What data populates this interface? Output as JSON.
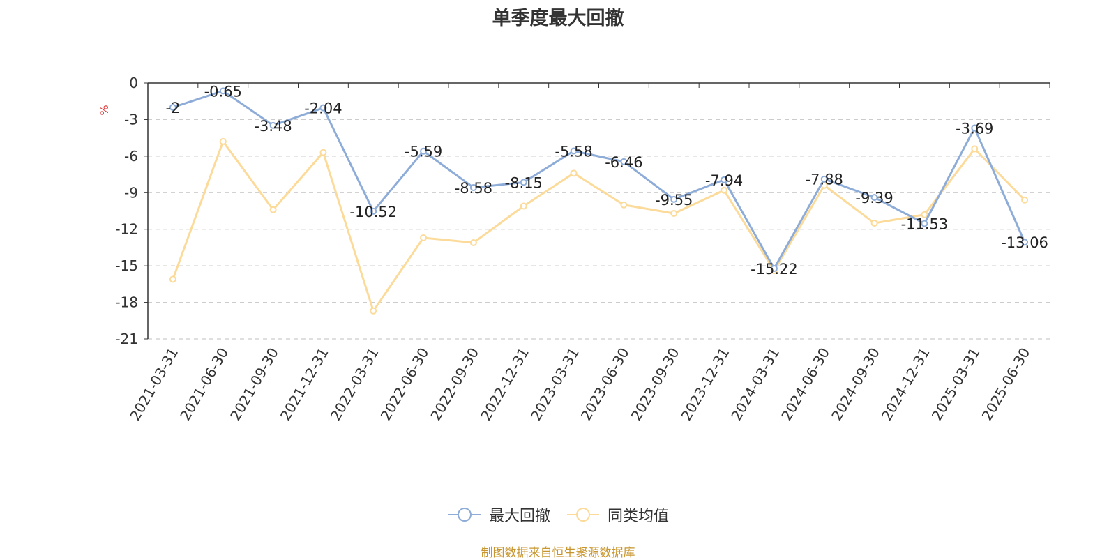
{
  "chart_data": {
    "type": "line",
    "title": "单季度最大回撤",
    "ylabel": "%",
    "ylim": [
      -21,
      0
    ],
    "yticks": [
      0,
      -3,
      -6,
      -9,
      -12,
      -15,
      -18,
      -21
    ],
    "grid": true,
    "legend_position": "bottom-center",
    "categories": [
      "2021-03-31",
      "2021-06-30",
      "2021-09-30",
      "2021-12-31",
      "2022-03-31",
      "2022-06-30",
      "2022-09-30",
      "2022-12-31",
      "2023-03-31",
      "2023-06-30",
      "2023-09-30",
      "2023-12-31",
      "2024-03-31",
      "2024-06-30",
      "2024-09-30",
      "2024-12-31",
      "2025-03-31",
      "2025-06-30"
    ],
    "series": [
      {
        "name": "最大回撤",
        "color": "#8eacd8",
        "show_labels": true,
        "values": [
          -2,
          -0.65,
          -3.48,
          -2.04,
          -10.52,
          -5.59,
          -8.58,
          -8.15,
          -5.58,
          -6.46,
          -9.55,
          -7.94,
          -15.22,
          -7.88,
          -9.39,
          -11.53,
          -3.69,
          -13.06
        ],
        "labels": [
          "-2",
          "-0.65",
          "-3.48",
          "-2.04",
          "-10.52",
          "-5.59",
          "-8.58",
          "-8.15",
          "-5.58",
          "-6.46",
          "-9.55",
          "-7.94",
          "-15.22",
          "-7.88",
          "-9.39",
          "-11.53",
          "-3.69",
          "-13.06"
        ]
      },
      {
        "name": "同类均值",
        "color": "#fcdb9a",
        "show_labels": false,
        "values": [
          -16.1,
          -4.8,
          -10.4,
          -5.7,
          -18.7,
          -12.7,
          -13.1,
          -10.1,
          -7.4,
          -10.0,
          -10.7,
          -8.8,
          -15.4,
          -8.4,
          -11.5,
          -10.8,
          -5.4,
          -9.6
        ]
      }
    ]
  },
  "footer": "制图数据来自恒生聚源数据库"
}
